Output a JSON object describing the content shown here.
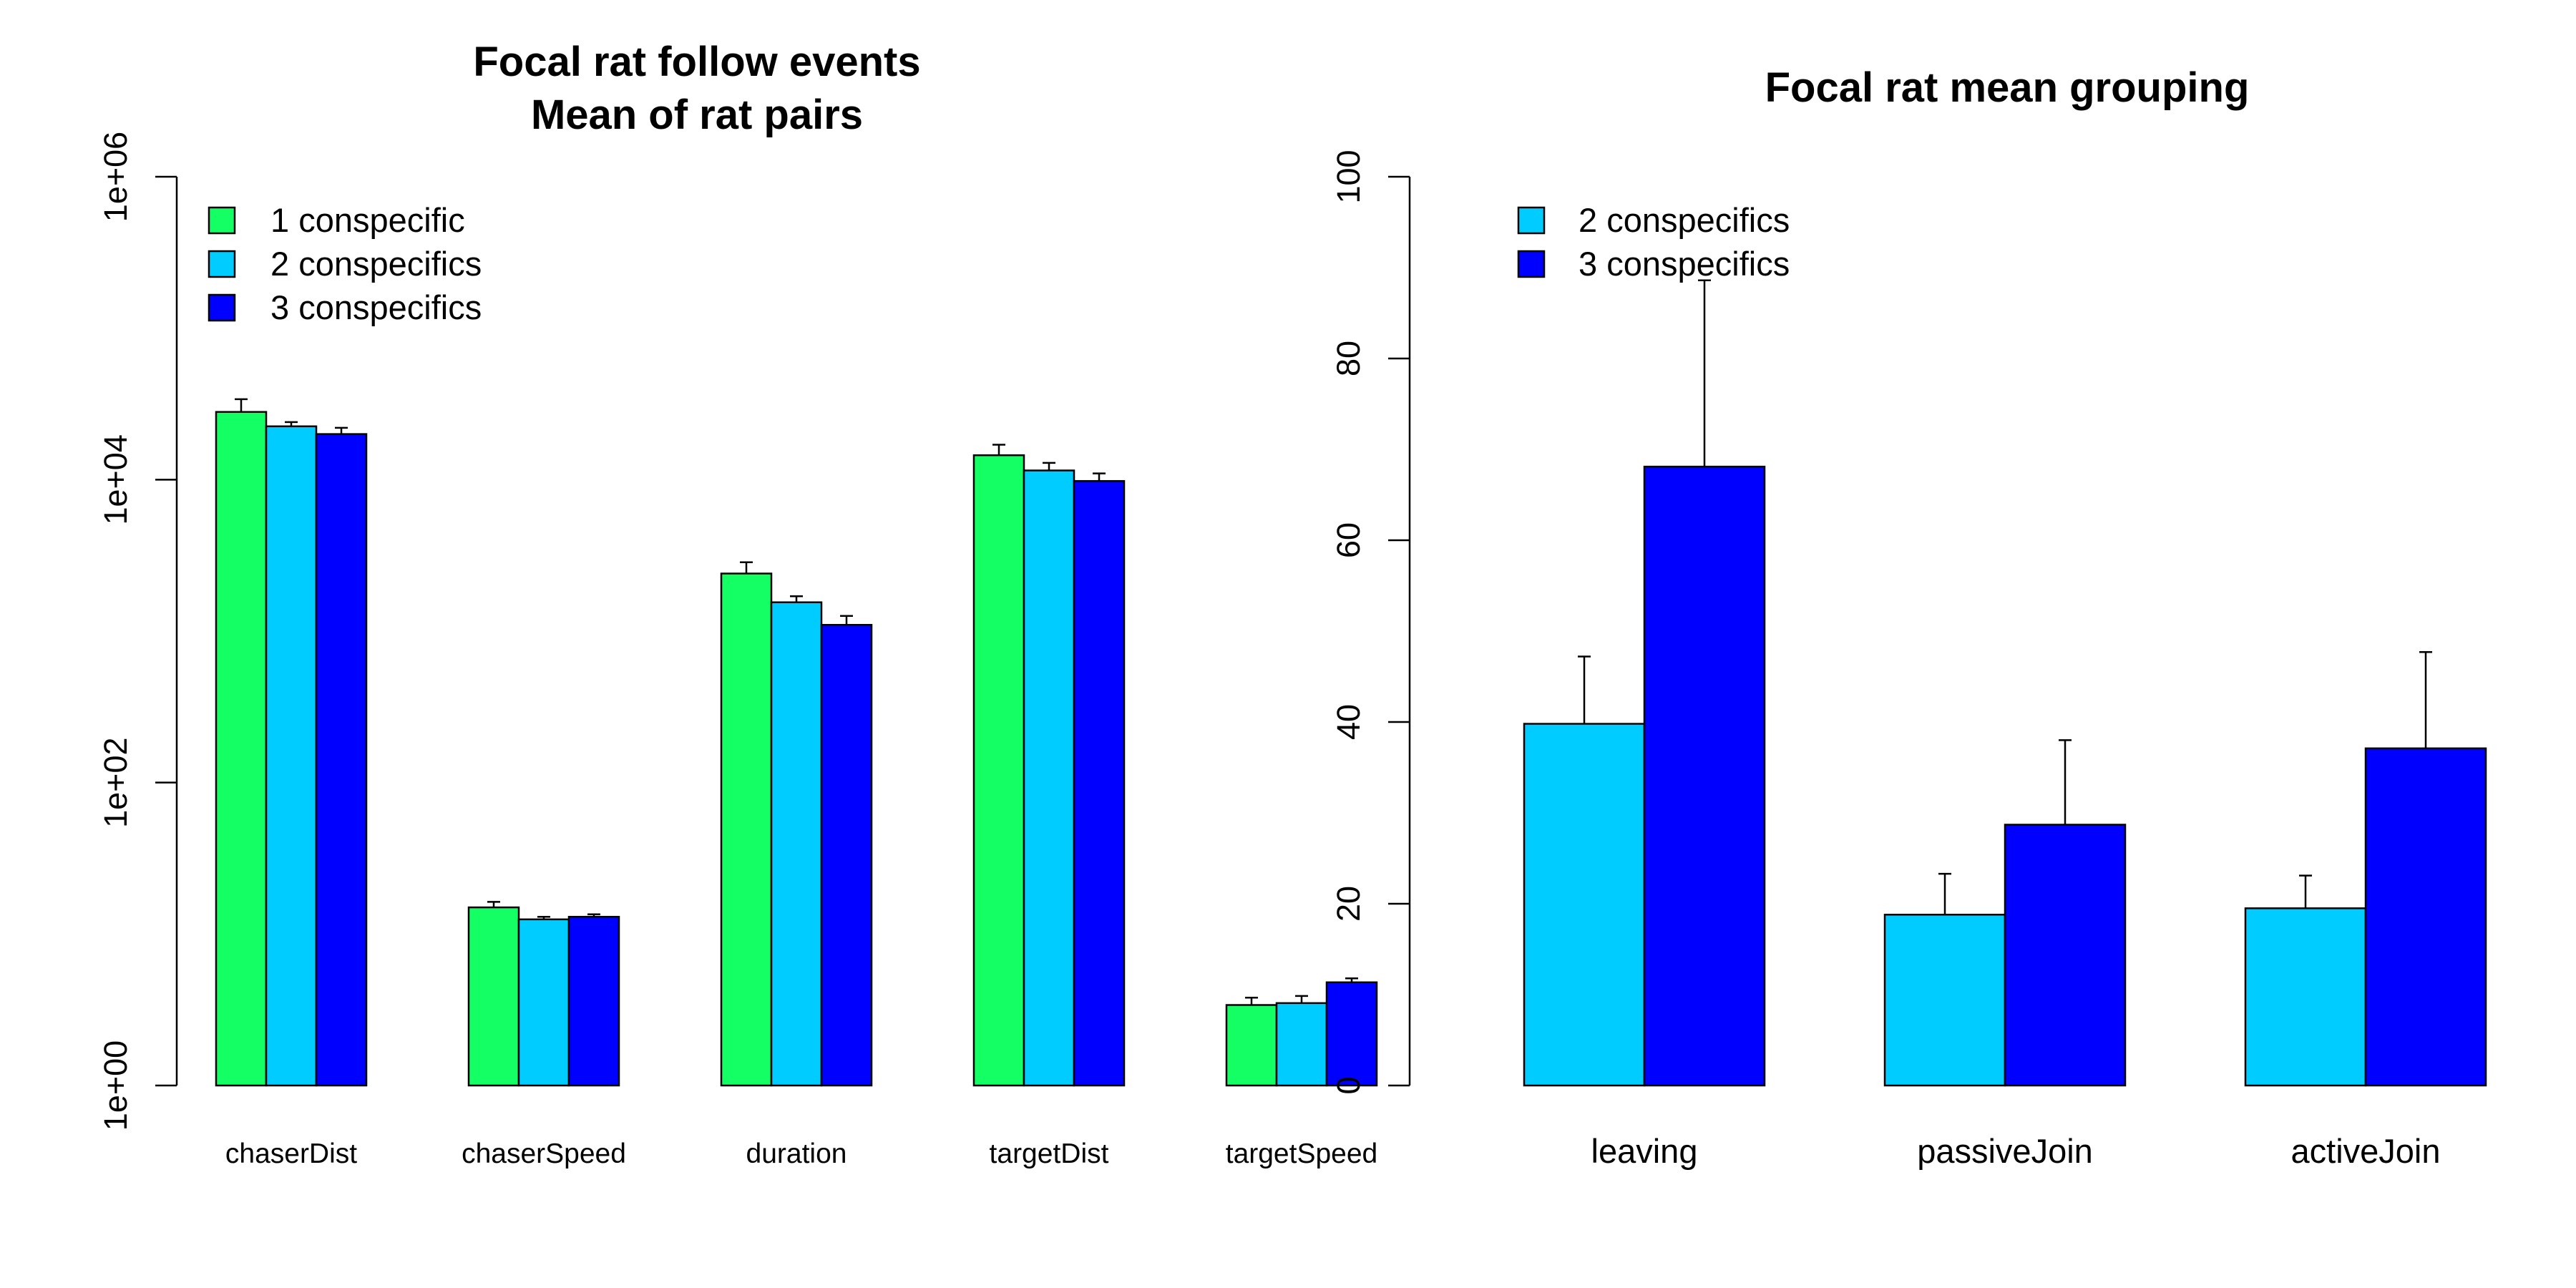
{
  "chart_data": [
    {
      "type": "bar",
      "title": "Focal rat follow events",
      "subtitle": "Mean of rat pairs",
      "xlabel": "",
      "ylabel": "",
      "yscale": "log",
      "ylim": [
        1,
        1000000
      ],
      "yticks": [
        1,
        100,
        10000,
        1000000
      ],
      "yticklabels": [
        "1e+00",
        "1e+02",
        "1e+04",
        "1e+06"
      ],
      "categories": [
        "chaserDist",
        "chaserSpeed",
        "duration",
        "targetDist",
        "targetSpeed"
      ],
      "series": [
        {
          "name": "1 conspecific",
          "color": "#14ff64",
          "values": [
            28000,
            15,
            2400,
            14500,
            3.4
          ],
          "error_upper": [
            34000,
            16.3,
            2850,
            17000,
            3.8
          ]
        },
        {
          "name": "2 conspecifics",
          "color": "#00ccff",
          "values": [
            22500,
            12.5,
            1550,
            11500,
            3.5
          ],
          "error_upper": [
            24000,
            13,
            1700,
            12900,
            3.9
          ]
        },
        {
          "name": "3 conspecifics",
          "color": "#0000ff",
          "values": [
            20000,
            13,
            1100,
            9800,
            4.8
          ],
          "error_upper": [
            22000,
            13.5,
            1260,
            11000,
            5.1
          ]
        }
      ],
      "legend": "top-left",
      "grid": false
    },
    {
      "type": "bar",
      "title": "Focal rat mean grouping",
      "xlabel": "",
      "ylabel": "",
      "ylim": [
        0,
        100
      ],
      "yticks": [
        0,
        20,
        40,
        60,
        80,
        100
      ],
      "yticklabels": [
        "0",
        "20",
        "40",
        "60",
        "80",
        "100"
      ],
      "categories": [
        "leaving",
        "passiveJoin",
        "activeJoin"
      ],
      "series": [
        {
          "name": "2 conspecifics",
          "color": "#00ccff",
          "values": [
            39.8,
            18.8,
            19.5
          ],
          "error_upper": [
            47.2,
            23.3,
            23.1
          ]
        },
        {
          "name": "3 conspecifics",
          "color": "#0000ff",
          "values": [
            68.1,
            28.7,
            37.1
          ],
          "error_upper": [
            88.6,
            38,
            47.7
          ]
        }
      ],
      "legend": "top-left",
      "grid": false
    }
  ]
}
